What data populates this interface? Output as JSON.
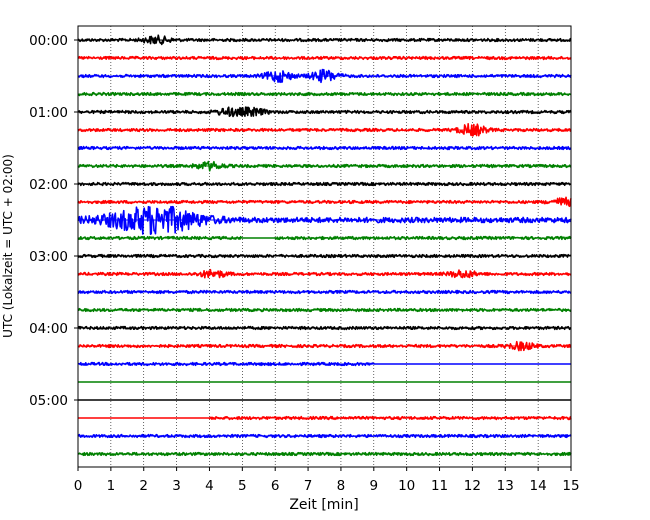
{
  "chart_data": {
    "type": "line",
    "title": "",
    "xlabel": "Zeit  [min]",
    "ylabel": "UTC (Lokalzeit = UTC + 02:00)",
    "xlim": [
      0,
      15
    ],
    "x_ticks": [
      "0",
      "1",
      "2",
      "3",
      "4",
      "5",
      "6",
      "7",
      "8",
      "9",
      "10",
      "11",
      "12",
      "13",
      "14",
      "15"
    ],
    "y_ticks": [
      "00:00",
      "01:00",
      "02:00",
      "03:00",
      "04:00",
      "05:00"
    ],
    "grid": "vertical dotted lines at each minute",
    "legend": "none",
    "line_colors": [
      "#000000",
      "#ff0000",
      "#0000ff",
      "#008000"
    ],
    "trace_interval_min": 15,
    "traces": [
      {
        "start": "00:00",
        "color": "#000000",
        "noise": "moderate",
        "events": [
          {
            "t": 2.4,
            "amp": "small"
          }
        ]
      },
      {
        "start": "00:15",
        "color": "#ff0000",
        "noise": "moderate",
        "events": []
      },
      {
        "start": "00:30",
        "color": "#0000ff",
        "noise": "moderate",
        "events": [
          {
            "t": 6.1,
            "amp": "medium"
          },
          {
            "t": 7.5,
            "amp": "medium"
          }
        ]
      },
      {
        "start": "00:45",
        "color": "#008000",
        "noise": "moderate",
        "events": []
      },
      {
        "start": "01:00",
        "color": "#000000",
        "noise": "moderate",
        "events": [
          {
            "t": 4.6,
            "amp": "small"
          },
          {
            "t": 5.3,
            "amp": "small"
          }
        ]
      },
      {
        "start": "01:15",
        "color": "#ff0000",
        "noise": "moderate",
        "events": [
          {
            "t": 12.0,
            "amp": "medium"
          }
        ]
      },
      {
        "start": "01:30",
        "color": "#0000ff",
        "noise": "moderate",
        "events": []
      },
      {
        "start": "01:45",
        "color": "#008000",
        "noise": "moderate",
        "events": [
          {
            "t": 4.0,
            "amp": "small"
          }
        ]
      },
      {
        "start": "02:00",
        "color": "#000000",
        "noise": "moderate",
        "events": []
      },
      {
        "start": "02:15",
        "color": "#ff0000",
        "noise": "moderate",
        "events": [
          {
            "t": 14.8,
            "amp": "small"
          }
        ]
      },
      {
        "start": "02:30",
        "color": "#0000ff",
        "noise": "high",
        "events": [
          {
            "t": 2.4,
            "amp": "large"
          }
        ]
      },
      {
        "start": "02:45",
        "color": "#008000",
        "noise": "moderate",
        "events": [],
        "gap": [
          5.0,
          6.0
        ]
      },
      {
        "start": "03:00",
        "color": "#000000",
        "noise": "moderate",
        "events": []
      },
      {
        "start": "03:15",
        "color": "#ff0000",
        "noise": "moderate",
        "events": [
          {
            "t": 4.1,
            "amp": "small"
          },
          {
            "t": 11.7,
            "amp": "small"
          }
        ]
      },
      {
        "start": "03:30",
        "color": "#0000ff",
        "noise": "moderate",
        "events": []
      },
      {
        "start": "03:45",
        "color": "#008000",
        "noise": "moderate",
        "events": []
      },
      {
        "start": "04:00",
        "color": "#000000",
        "noise": "moderate",
        "events": []
      },
      {
        "start": "04:15",
        "color": "#ff0000",
        "noise": "moderate",
        "events": [
          {
            "t": 13.5,
            "amp": "small"
          }
        ]
      },
      {
        "start": "04:30",
        "color": "#0000ff",
        "noise": "moderate",
        "events": [],
        "data_end": 9.0
      },
      {
        "start": "04:45",
        "color": "#008000",
        "noise": "none",
        "events": []
      },
      {
        "start": "05:00",
        "color": "#000000",
        "noise": "none",
        "events": []
      },
      {
        "start": "05:15",
        "color": "#ff0000",
        "noise": "moderate",
        "events": [],
        "data_start": 4.0
      },
      {
        "start": "05:30",
        "color": "#0000ff",
        "noise": "moderate",
        "events": []
      },
      {
        "start": "05:45",
        "color": "#008000",
        "noise": "moderate",
        "events": []
      }
    ]
  }
}
